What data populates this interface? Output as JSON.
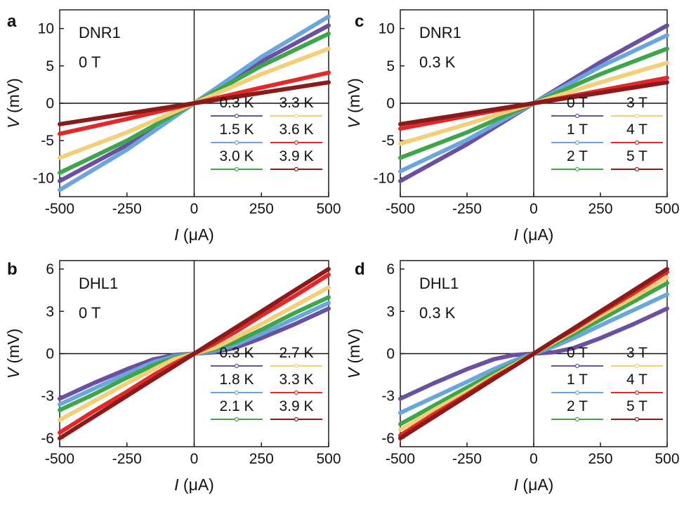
{
  "chart_data": [
    {
      "panel_label": "a",
      "type": "line",
      "annotation": [
        "DNR1",
        "0 T"
      ],
      "xlabel": {
        "italic": "I",
        "rest": " (μA)"
      },
      "ylabel": {
        "italic": "V",
        "rest": " (mV)"
      },
      "xlim": [
        -500,
        500
      ],
      "ylim": [
        -12.5,
        12.5
      ],
      "xticks": [
        -500,
        -250,
        0,
        250,
        500
      ],
      "yticks": [
        10,
        5,
        0,
        -5,
        -10
      ],
      "xticklabels": [
        "-500",
        "-250",
        "0",
        "250",
        "500"
      ],
      "yticklabels": [
        "10",
        "5",
        "0",
        "-5",
        "-10"
      ],
      "legend_columns": 2,
      "series": [
        {
          "name": "0.3 K",
          "color": "#6b4fa0",
          "x": [
            -500,
            -250,
            0,
            250,
            500
          ],
          "y": [
            -10.4,
            -5.6,
            0,
            5.6,
            10.4
          ]
        },
        {
          "name": "1.5 K",
          "color": "#6aa6dc",
          "x": [
            -500,
            -250,
            0,
            250,
            500
          ],
          "y": [
            -11.6,
            -6.2,
            0,
            6.2,
            11.6
          ]
        },
        {
          "name": "3.0 K",
          "color": "#3ea64a",
          "x": [
            -500,
            -250,
            0,
            250,
            500
          ],
          "y": [
            -9.3,
            -5.0,
            0,
            5.0,
            9.3
          ]
        },
        {
          "name": "3.3 K",
          "color": "#f3cf78",
          "x": [
            -500,
            -250,
            0,
            250,
            500
          ],
          "y": [
            -7.3,
            -3.9,
            0,
            3.9,
            7.3
          ]
        },
        {
          "name": "3.6 K",
          "color": "#e02a2a",
          "x": [
            -500,
            -250,
            0,
            250,
            500
          ],
          "y": [
            -4.1,
            -2.1,
            0,
            2.1,
            4.1
          ]
        },
        {
          "name": "3.9 K",
          "color": "#8b1a1a",
          "x": [
            -500,
            -250,
            0,
            250,
            500
          ],
          "y": [
            -2.8,
            -1.4,
            0,
            1.4,
            2.8
          ]
        }
      ]
    },
    {
      "panel_label": "c",
      "type": "line",
      "annotation": [
        "DNR1",
        "0.3 K"
      ],
      "xlabel": {
        "italic": "I",
        "rest": " (μA)"
      },
      "ylabel": {
        "italic": "V",
        "rest": " (mV)"
      },
      "xlim": [
        -500,
        500
      ],
      "ylim": [
        -12.5,
        12.5
      ],
      "xticks": [
        -500,
        -250,
        0,
        250,
        500
      ],
      "yticks": [
        10,
        5,
        0,
        -5,
        -10
      ],
      "xticklabels": [
        "-500",
        "-250",
        "0",
        "250",
        "500"
      ],
      "yticklabels": [
        "10",
        "5",
        "0",
        "-5",
        "-10"
      ],
      "legend_columns": 2,
      "series": [
        {
          "name": "0 T",
          "color": "#6b4fa0",
          "x": [
            -500,
            -250,
            0,
            250,
            500
          ],
          "y": [
            -10.4,
            -5.5,
            0,
            5.5,
            10.4
          ]
        },
        {
          "name": "1 T",
          "color": "#6aa6dc",
          "x": [
            -500,
            -250,
            0,
            250,
            500
          ],
          "y": [
            -9.1,
            -4.9,
            0,
            4.9,
            9.1
          ]
        },
        {
          "name": "2 T",
          "color": "#3ea64a",
          "x": [
            -500,
            -250,
            0,
            250,
            500
          ],
          "y": [
            -7.3,
            -3.9,
            0,
            3.9,
            7.3
          ]
        },
        {
          "name": "3 T",
          "color": "#f3cf78",
          "x": [
            -500,
            -250,
            0,
            250,
            500
          ],
          "y": [
            -5.4,
            -2.8,
            0,
            2.8,
            5.4
          ]
        },
        {
          "name": "4 T",
          "color": "#e02a2a",
          "x": [
            -500,
            -250,
            0,
            250,
            500
          ],
          "y": [
            -3.4,
            -1.7,
            0,
            1.7,
            3.4
          ]
        },
        {
          "name": "5 T",
          "color": "#8b1a1a",
          "x": [
            -500,
            -250,
            0,
            250,
            500
          ],
          "y": [
            -2.8,
            -1.4,
            0,
            1.4,
            2.8
          ]
        }
      ]
    },
    {
      "panel_label": "b",
      "type": "line",
      "annotation": [
        "DHL1",
        "0 T"
      ],
      "xlabel": {
        "italic": "I",
        "rest": " (μA)"
      },
      "ylabel": {
        "italic": "V",
        "rest": " (mV)"
      },
      "xlim": [
        -500,
        500
      ],
      "ylim": [
        -6.6,
        6.6
      ],
      "xticks": [
        -500,
        -250,
        0,
        250,
        500
      ],
      "yticks": [
        6,
        3,
        0,
        -3,
        -6
      ],
      "xticklabels": [
        "-500",
        "-250",
        "0",
        "250",
        "500"
      ],
      "yticklabels": [
        "6",
        "3",
        "0",
        "-3",
        "-6"
      ],
      "legend_columns": 2,
      "series": [
        {
          "name": "0.3 K",
          "color": "#6b4fa0",
          "x": [
            -500,
            -375,
            -250,
            -150,
            -75,
            0,
            75,
            150,
            250,
            375,
            500
          ],
          "y": [
            -3.2,
            -2.1,
            -1.1,
            -0.4,
            -0.1,
            0,
            0.1,
            0.4,
            1.1,
            2.1,
            3.2
          ]
        },
        {
          "name": "1.8 K",
          "color": "#6aa6dc",
          "x": [
            -500,
            -375,
            -250,
            -150,
            -75,
            0,
            75,
            150,
            250,
            375,
            500
          ],
          "y": [
            -3.6,
            -2.5,
            -1.4,
            -0.6,
            -0.2,
            0,
            0.2,
            0.6,
            1.4,
            2.5,
            3.6
          ]
        },
        {
          "name": "2.1 K",
          "color": "#3ea64a",
          "x": [
            -500,
            -375,
            -250,
            -150,
            -75,
            0,
            75,
            150,
            250,
            375,
            500
          ],
          "y": [
            -4.0,
            -2.9,
            -1.7,
            -0.8,
            -0.3,
            0,
            0.3,
            0.8,
            1.7,
            2.9,
            4.0
          ]
        },
        {
          "name": "2.7 K",
          "color": "#f3cf78",
          "x": [
            -500,
            -375,
            -250,
            -150,
            -75,
            0,
            75,
            150,
            250,
            375,
            500
          ],
          "y": [
            -4.7,
            -3.4,
            -2.1,
            -1.1,
            -0.4,
            0,
            0.4,
            1.1,
            2.1,
            3.4,
            4.7
          ]
        },
        {
          "name": "3.3 K",
          "color": "#e02a2a",
          "x": [
            -500,
            -375,
            -250,
            -150,
            -75,
            0,
            75,
            150,
            250,
            375,
            500
          ],
          "y": [
            -5.6,
            -4.1,
            -2.7,
            -1.5,
            -0.7,
            0,
            0.7,
            1.5,
            2.7,
            4.1,
            5.6
          ]
        },
        {
          "name": "3.9 K",
          "color": "#8b1a1a",
          "x": [
            -500,
            -375,
            -250,
            -150,
            -75,
            0,
            75,
            150,
            250,
            375,
            500
          ],
          "y": [
            -6.0,
            -4.5,
            -3.0,
            -1.8,
            -0.9,
            0,
            0.9,
            1.8,
            3.0,
            4.5,
            6.0
          ]
        }
      ]
    },
    {
      "panel_label": "d",
      "type": "line",
      "annotation": [
        "DHL1",
        "0.3 K"
      ],
      "xlabel": {
        "italic": "I",
        "rest": " (μA)"
      },
      "ylabel": {
        "italic": "V",
        "rest": " (mV)"
      },
      "xlim": [
        -500,
        500
      ],
      "ylim": [
        -6.6,
        6.6
      ],
      "xticks": [
        -500,
        -250,
        0,
        250,
        500
      ],
      "yticks": [
        6,
        3,
        0,
        -3,
        -6
      ],
      "xticklabels": [
        "-500",
        "-250",
        "0",
        "250",
        "500"
      ],
      "yticklabels": [
        "6",
        "3",
        "0",
        "-3",
        "-6"
      ],
      "legend_columns": 2,
      "series": [
        {
          "name": "0 T",
          "color": "#6b4fa0",
          "x": [
            -500,
            -375,
            -250,
            -150,
            -75,
            0,
            75,
            150,
            250,
            375,
            500
          ],
          "y": [
            -3.2,
            -2.1,
            -1.1,
            -0.4,
            -0.1,
            0,
            0.1,
            0.4,
            1.1,
            2.1,
            3.2
          ]
        },
        {
          "name": "1 T",
          "color": "#6aa6dc",
          "x": [
            -500,
            -375,
            -250,
            -150,
            -75,
            0,
            75,
            150,
            250,
            375,
            500
          ],
          "y": [
            -4.2,
            -3.1,
            -2.0,
            -1.1,
            -0.5,
            0,
            0.5,
            1.1,
            2.0,
            3.1,
            4.2
          ]
        },
        {
          "name": "2 T",
          "color": "#3ea64a",
          "x": [
            -500,
            -375,
            -250,
            -150,
            -75,
            0,
            75,
            150,
            250,
            375,
            500
          ],
          "y": [
            -5.0,
            -3.7,
            -2.4,
            -1.4,
            -0.7,
            0,
            0.7,
            1.4,
            2.4,
            3.7,
            5.0
          ]
        },
        {
          "name": "3 T",
          "color": "#f3cf78",
          "x": [
            -500,
            -375,
            -250,
            -150,
            -75,
            0,
            75,
            150,
            250,
            375,
            500
          ],
          "y": [
            -5.4,
            -4.0,
            -2.7,
            -1.6,
            -0.8,
            0,
            0.8,
            1.6,
            2.7,
            4.0,
            5.4
          ]
        },
        {
          "name": "4 T",
          "color": "#e02a2a",
          "x": [
            -500,
            -375,
            -250,
            -150,
            -75,
            0,
            75,
            150,
            250,
            375,
            500
          ],
          "y": [
            -5.8,
            -4.3,
            -2.9,
            -1.7,
            -0.9,
            0,
            0.9,
            1.7,
            2.9,
            4.3,
            5.8
          ]
        },
        {
          "name": "5 T",
          "color": "#8b1a1a",
          "x": [
            -500,
            -375,
            -250,
            -150,
            -75,
            0,
            75,
            150,
            250,
            375,
            500
          ],
          "y": [
            -6.0,
            -4.5,
            -3.0,
            -1.8,
            -0.9,
            0,
            0.9,
            1.8,
            3.0,
            4.5,
            6.0
          ]
        }
      ]
    }
  ]
}
